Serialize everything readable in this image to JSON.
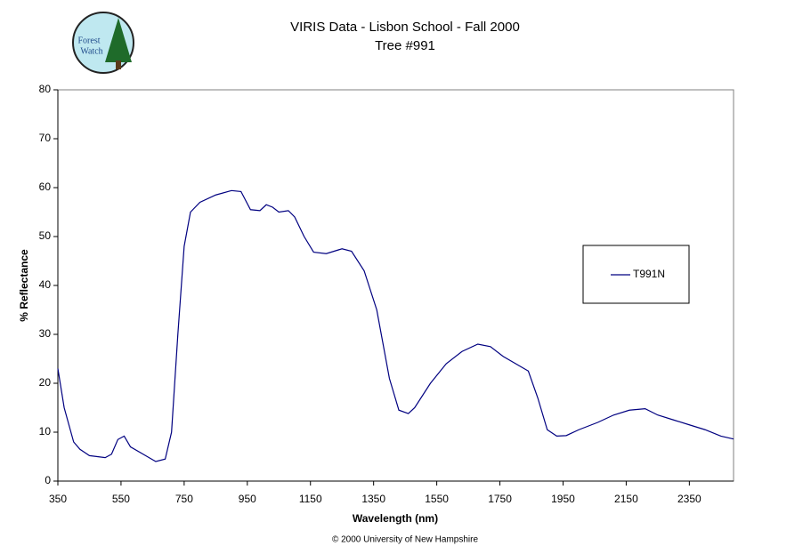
{
  "logo": {
    "line1": "Forest",
    "line2": "Watch"
  },
  "chart_data": {
    "type": "line",
    "title": "VIRIS Data - Lisbon School - Fall 2000",
    "subtitle": "Tree #991",
    "x_label": "Wavelength (nm)",
    "y_label": "% Reflectance",
    "footer": "© 2000 University of New Hampshire",
    "x": [
      350,
      370,
      400,
      420,
      450,
      500,
      520,
      540,
      560,
      580,
      620,
      660,
      690,
      710,
      730,
      750,
      770,
      800,
      850,
      900,
      930,
      960,
      990,
      1010,
      1030,
      1050,
      1080,
      1100,
      1130,
      1160,
      1200,
      1250,
      1280,
      1320,
      1360,
      1400,
      1430,
      1460,
      1480,
      1530,
      1580,
      1630,
      1680,
      1720,
      1760,
      1800,
      1840,
      1870,
      1900,
      1930,
      1960,
      2000,
      2060,
      2110,
      2160,
      2210,
      2250,
      2300,
      2350,
      2400,
      2450,
      2490
    ],
    "series": [
      {
        "name": "T991N",
        "color": "#000080",
        "values": [
          23,
          15,
          8,
          6.5,
          5.2,
          4.8,
          5.5,
          8.5,
          9.2,
          7,
          5.5,
          4,
          4.5,
          10,
          30,
          48,
          55,
          57,
          58.5,
          59.4,
          59.2,
          55.5,
          55.3,
          56.5,
          56,
          55,
          55.3,
          54,
          50,
          46.8,
          46.5,
          47.5,
          47,
          43,
          35,
          21,
          14.5,
          13.8,
          15,
          20,
          24,
          26.5,
          28,
          27.5,
          25.5,
          24,
          22.5,
          17,
          10.5,
          9.2,
          9.3,
          10.5,
          12,
          13.5,
          14.5,
          14.8,
          13.5,
          12.5,
          11.5,
          10.5,
          9.2,
          8.6
        ]
      }
    ],
    "xlim": [
      350,
      2490
    ],
    "xticks": [
      350,
      550,
      750,
      950,
      1150,
      1350,
      1550,
      1750,
      1950,
      2150,
      2350
    ],
    "ylim": [
      0,
      80
    ],
    "yticks": [
      0,
      10,
      20,
      30,
      40,
      50,
      60,
      70,
      80
    ],
    "grid": false
  }
}
